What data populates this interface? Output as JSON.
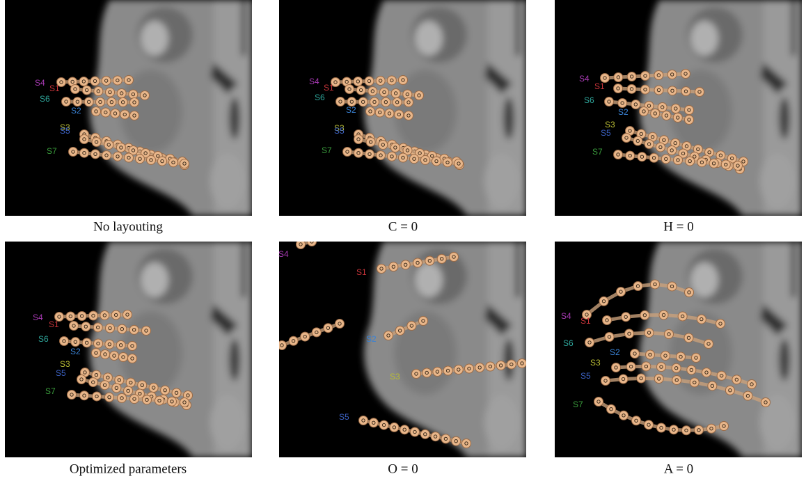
{
  "panels": [
    {
      "caption": "No layouting",
      "labels": [
        {
          "text": "S4",
          "color": "#a83ab4"
        },
        {
          "text": "S1",
          "color": "#c8343a"
        },
        {
          "text": "S6",
          "color": "#2ea59a"
        },
        {
          "text": "S2",
          "color": "#3a82d4"
        },
        {
          "text": "S3",
          "color": "#b8bb34"
        },
        {
          "text": "S5",
          "color": "#3c62c4"
        },
        {
          "text": "S7",
          "color": "#3a9c3c"
        }
      ]
    },
    {
      "caption": "C = 0",
      "labels": [
        {
          "text": "S4",
          "color": "#a83ab4"
        },
        {
          "text": "S1",
          "color": "#c8343a"
        },
        {
          "text": "S6",
          "color": "#2ea59a"
        },
        {
          "text": "S2",
          "color": "#3a82d4"
        },
        {
          "text": "S3",
          "color": "#b8bb34"
        },
        {
          "text": "S5",
          "color": "#3c62c4"
        },
        {
          "text": "S7",
          "color": "#3a9c3c"
        }
      ]
    },
    {
      "caption": "H = 0",
      "labels": [
        {
          "text": "S4",
          "color": "#a83ab4"
        },
        {
          "text": "S1",
          "color": "#c8343a"
        },
        {
          "text": "S6",
          "color": "#2ea59a"
        },
        {
          "text": "S2",
          "color": "#3a82d4"
        },
        {
          "text": "S3",
          "color": "#b8bb34"
        },
        {
          "text": "S5",
          "color": "#3c62c4"
        },
        {
          "text": "S7",
          "color": "#3a9c3c"
        }
      ]
    },
    {
      "caption": "Optimized parameters",
      "labels": [
        {
          "text": "S4",
          "color": "#a83ab4"
        },
        {
          "text": "S1",
          "color": "#c8343a"
        },
        {
          "text": "S6",
          "color": "#2ea59a"
        },
        {
          "text": "S2",
          "color": "#3a82d4"
        },
        {
          "text": "S3",
          "color": "#b8bb34"
        },
        {
          "text": "S5",
          "color": "#3c62c4"
        },
        {
          "text": "S7",
          "color": "#3a9c3c"
        }
      ]
    },
    {
      "caption": "O = 0",
      "labels": [
        {
          "text": "S4",
          "color": "#a83ab4"
        },
        {
          "text": "S1",
          "color": "#c8343a"
        },
        {
          "text": "S2",
          "color": "#3a82d4"
        },
        {
          "text": "S3",
          "color": "#b8bb34"
        },
        {
          "text": "S5",
          "color": "#3c62c4"
        }
      ]
    },
    {
      "caption": "A = 0",
      "labels": [
        {
          "text": "S4",
          "color": "#a83ab4"
        },
        {
          "text": "S1",
          "color": "#c8343a"
        },
        {
          "text": "S6",
          "color": "#2ea59a"
        },
        {
          "text": "S2",
          "color": "#3a82d4"
        },
        {
          "text": "S3",
          "color": "#b8bb34"
        },
        {
          "text": "S5",
          "color": "#3c62c4"
        },
        {
          "text": "S7",
          "color": "#3a9c3c"
        }
      ]
    }
  ]
}
